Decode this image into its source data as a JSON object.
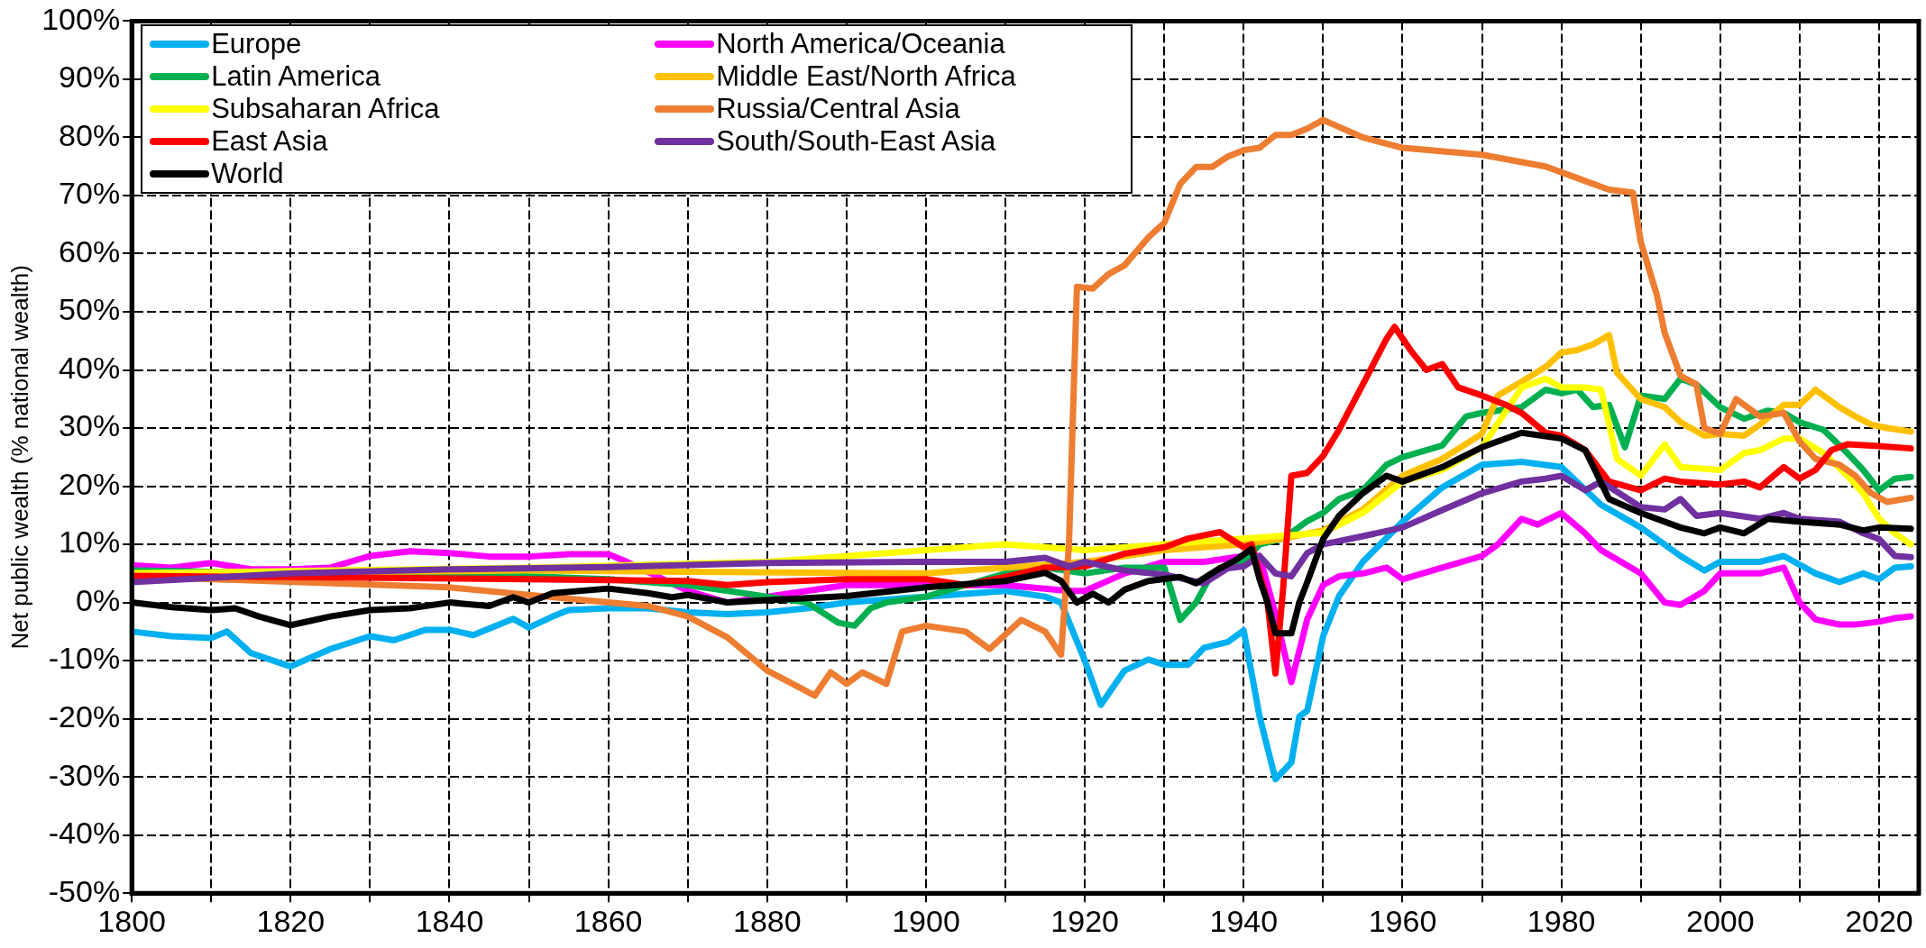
{
  "chart_data": {
    "type": "line",
    "ylabel": "Net public wealth (% national wealth)",
    "xlim": [
      1800,
      2025
    ],
    "ylim": [
      -50,
      100
    ],
    "xticks": [
      1800,
      {
        "value": 1810,
        "label": null
      },
      1820,
      {
        "value": 1830,
        "label": null
      },
      1840,
      {
        "value": 1850,
        "label": null
      },
      1860,
      {
        "value": 1870,
        "label": null
      },
      1880,
      {
        "value": 1890,
        "label": null
      },
      1900,
      {
        "value": 1910,
        "label": null
      },
      1920,
      {
        "value": 1930,
        "label": null
      },
      1940,
      {
        "value": 1950,
        "label": null
      },
      1960,
      {
        "value": 1970,
        "label": null
      },
      1980,
      {
        "value": 1990,
        "label": null
      },
      2000,
      {
        "value": 2010,
        "label": null
      },
      2020
    ],
    "yticks": [
      {
        "value": -50,
        "label": "-50%"
      },
      {
        "value": -40,
        "label": "-40%"
      },
      {
        "value": -30,
        "label": "-30%"
      },
      {
        "value": -20,
        "label": "-20%"
      },
      {
        "value": -10,
        "label": "-10%"
      },
      {
        "value": 0,
        "label": "0%"
      },
      {
        "value": 10,
        "label": "10%"
      },
      {
        "value": 20,
        "label": "20%"
      },
      {
        "value": 30,
        "label": "30%"
      },
      {
        "value": 40,
        "label": "40%"
      },
      {
        "value": 50,
        "label": "50%"
      },
      {
        "value": 60,
        "label": "60%"
      },
      {
        "value": 70,
        "label": "70%"
      },
      {
        "value": 80,
        "label": "80%"
      },
      {
        "value": 90,
        "label": "90%"
      },
      {
        "value": 100,
        "label": "100%"
      }
    ],
    "grid": true,
    "legend": "top left",
    "marker": "none",
    "line_style": "solid",
    "series": [
      {
        "name": "Europe",
        "color": "#00b0f0",
        "x": [
          1800,
          1805,
          1810,
          1812,
          1815,
          1820,
          1825,
          1830,
          1833,
          1837,
          1840,
          1843,
          1848,
          1850,
          1853,
          1855,
          1860,
          1865,
          1870,
          1875,
          1880,
          1885,
          1890,
          1900,
          1910,
          1915,
          1917,
          1920,
          1922,
          1925,
          1928,
          1930,
          1933,
          1935,
          1938,
          1940,
          1942,
          1944,
          1946,
          1947,
          1948,
          1950,
          1952,
          1955,
          1960,
          1965,
          1970,
          1975,
          1980,
          1985,
          1990,
          1995,
          1998,
          2000,
          2005,
          2008,
          2012,
          2015,
          2018,
          2020,
          2022,
          2024
        ],
        "values": [
          -5,
          -5.8,
          -6.1,
          -5,
          -8.7,
          -11,
          -8,
          -5.8,
          -6.5,
          -4.7,
          -4.7,
          -5.6,
          -2.8,
          -4.3,
          -2.4,
          -1.3,
          -1,
          -1,
          -1.7,
          -2,
          -1.7,
          -1,
          0,
          1,
          2,
          1,
          0,
          -10,
          -17.6,
          -11.7,
          -9.8,
          -10.7,
          -10.7,
          -7.8,
          -6.8,
          -4.8,
          -19.6,
          -30.4,
          -27.5,
          -19.6,
          -18.6,
          -5.8,
          1.1,
          7,
          13.9,
          19.8,
          23.7,
          24.2,
          23.3,
          16.8,
          12.9,
          8,
          5.5,
          7,
          7,
          8,
          5,
          3.5,
          5,
          4,
          6,
          6.2
        ]
      },
      {
        "name": "North America/Oceania",
        "color": "#ff00ff",
        "x": [
          1800,
          1805,
          1810,
          1815,
          1820,
          1825,
          1830,
          1835,
          1840,
          1845,
          1850,
          1855,
          1860,
          1862,
          1870,
          1875,
          1880,
          1885,
          1890,
          1900,
          1910,
          1918,
          1920,
          1925,
          1930,
          1935,
          1940,
          1942,
          1944,
          1946,
          1948,
          1950,
          1952,
          1955,
          1958,
          1960,
          1965,
          1970,
          1972,
          1975,
          1977,
          1980,
          1983,
          1985,
          1990,
          1993,
          1995,
          1998,
          2000,
          2005,
          2008,
          2010,
          2012,
          2015,
          2017,
          2020,
          2022,
          2024
        ],
        "values": [
          6.4,
          6,
          6.8,
          5.7,
          5.7,
          6,
          8,
          8.8,
          8.5,
          7.9,
          7.9,
          8.3,
          8.3,
          7.2,
          2,
          0,
          1,
          2,
          3,
          3,
          3,
          2,
          2,
          5,
          7,
          7,
          8,
          8,
          -2,
          -13.7,
          -2.9,
          3,
          4.5,
          5,
          6,
          4,
          6,
          8,
          10,
          14.4,
          13.4,
          15.4,
          11.9,
          9,
          5,
          0,
          -0.4,
          2,
          5,
          5,
          6,
          0,
          -2.9,
          -3.8,
          -3.8,
          -3.3,
          -2.7,
          -2.4
        ]
      },
      {
        "name": "Latin America",
        "color": "#00b050",
        "x": [
          1800,
          1820,
          1840,
          1860,
          1870,
          1880,
          1885,
          1889,
          1891,
          1893,
          1895,
          1900,
          1905,
          1910,
          1915,
          1920,
          1925,
          1930,
          1932,
          1934,
          1936,
          1940,
          1942,
          1945,
          1948,
          1950,
          1952,
          1955,
          1958,
          1960,
          1965,
          1968,
          1970,
          1975,
          1978,
          1980,
          1982,
          1984,
          1986,
          1988,
          1990,
          1993,
          1995,
          1997,
          2000,
          2003,
          2006,
          2008,
          2010,
          2013,
          2016,
          2018,
          2020,
          2022,
          2024
        ],
        "values": [
          5.5,
          5,
          5,
          4,
          3,
          1,
          0,
          -3.5,
          -4,
          -1,
          0,
          1,
          3,
          5,
          6,
          5,
          6,
          6,
          -3,
          0,
          5,
          7,
          10,
          11,
          14,
          15.4,
          17.8,
          19.3,
          23.7,
          25,
          27,
          32,
          32.6,
          33.6,
          36.6,
          36,
          36.6,
          33.6,
          34,
          26.7,
          35.6,
          35,
          38.5,
          37.5,
          33.6,
          31.6,
          33,
          32.6,
          31,
          29.7,
          25.7,
          22.8,
          19.3,
          21.3,
          21.6
        ]
      },
      {
        "name": "Middle East/North Africa",
        "color": "#ffc000",
        "x": [
          1800,
          1850,
          1900,
          1920,
          1930,
          1940,
          1945,
          1950,
          1955,
          1960,
          1965,
          1970,
          1972,
          1975,
          1978,
          1980,
          1982,
          1984,
          1986,
          1987,
          1990,
          1993,
          1995,
          1998,
          2000,
          2003,
          2005,
          2008,
          2010,
          2012,
          2015,
          2017,
          2019,
          2021,
          2024
        ],
        "values": [
          5,
          5.5,
          5,
          7,
          9,
          10,
          11,
          12.4,
          16,
          21.8,
          24.7,
          29,
          35.6,
          38,
          40.5,
          43,
          43.4,
          44.4,
          46,
          39.5,
          35,
          33.6,
          31,
          28.7,
          29,
          28.7,
          30.6,
          34,
          34,
          36.6,
          33.6,
          32,
          30.6,
          30,
          29.4
        ]
      },
      {
        "name": "Subsaharan Africa",
        "color": "#ffff00",
        "x": [
          1800,
          1850,
          1880,
          1900,
          1910,
          1920,
          1930,
          1940,
          1945,
          1950,
          1955,
          1960,
          1965,
          1970,
          1975,
          1978,
          1980,
          1983,
          1985,
          1987,
          1990,
          1993,
          1995,
          2000,
          2003,
          2005,
          2008,
          2010,
          2013,
          2016,
          2018,
          2020,
          2022,
          2024
        ],
        "values": [
          5,
          6,
          7,
          9,
          10,
          9,
          10,
          11,
          11.5,
          12,
          15.4,
          20.8,
          22.8,
          26.7,
          37,
          38.5,
          37,
          37,
          36.6,
          24.7,
          21.8,
          27.2,
          23.3,
          22.8,
          25.7,
          26.2,
          28.2,
          28.2,
          25.7,
          21.8,
          18.8,
          14.4,
          11.9,
          10
        ]
      },
      {
        "name": "Russia/Central Asia",
        "color": "#ed7d31",
        "x": [
          1800,
          1840,
          1860,
          1865,
          1870,
          1875,
          1880,
          1886,
          1888,
          1890,
          1892,
          1895,
          1897,
          1900,
          1905,
          1908,
          1912,
          1915,
          1917,
          1918,
          1919,
          1921,
          1923,
          1925,
          1928,
          1930,
          1932,
          1934,
          1936,
          1938,
          1940,
          1942,
          1944,
          1946,
          1948,
          1950,
          1955,
          1960,
          1970,
          1978,
          1982,
          1986,
          1989,
          1990,
          1992,
          1993,
          1995,
          1997,
          1998,
          2000,
          2002,
          2005,
          2008,
          2010,
          2012,
          2015,
          2017,
          2019,
          2021,
          2024
        ],
        "values": [
          4.5,
          2.6,
          0,
          -0.6,
          -2.4,
          -6,
          -11.7,
          -16,
          -12,
          -14,
          -12,
          -14,
          -5,
          -4,
          -5,
          -8,
          -3,
          -5,
          -9,
          10,
          54.3,
          54,
          56.5,
          58,
          62.8,
          65.3,
          72,
          74.9,
          74.9,
          76.7,
          77.8,
          78.2,
          80.4,
          80.4,
          81.5,
          83,
          80,
          78.2,
          77,
          75,
          73,
          71,
          70.5,
          62,
          53,
          46.4,
          39,
          37.5,
          30,
          29,
          35,
          32,
          32.6,
          27.7,
          24.7,
          23.7,
          21.8,
          18.8,
          17.3,
          18
        ]
      },
      {
        "name": "East Asia",
        "color": "#ff0000",
        "x": [
          1800,
          1850,
          1870,
          1875,
          1880,
          1890,
          1900,
          1905,
          1910,
          1915,
          1920,
          1925,
          1930,
          1933,
          1937,
          1940,
          1941,
          1943,
          1944,
          1945,
          1946,
          1948,
          1950,
          1952,
          1955,
          1958,
          1959,
          1961,
          1963,
          1965,
          1967,
          1970,
          1973,
          1975,
          1978,
          1980,
          1983,
          1986,
          1990,
          1993,
          1995,
          2000,
          2003,
          2005,
          2008,
          2010,
          2012,
          2014,
          2016,
          2020,
          2024
        ],
        "values": [
          4.6,
          4,
          3.7,
          3,
          3.5,
          4,
          4,
          3,
          4.4,
          6,
          6.2,
          8.4,
          9.5,
          11,
          12.1,
          9.5,
          10,
          0,
          -12.2,
          3,
          21.8,
          22.3,
          25.2,
          29.7,
          37.5,
          45.4,
          47.4,
          43.4,
          40,
          41,
          37,
          35.6,
          34,
          32.6,
          29.2,
          28.7,
          26.2,
          20.8,
          19.3,
          21.3,
          20.8,
          20.3,
          20.8,
          19.8,
          23.3,
          21.3,
          22.8,
          26.2,
          27.2,
          26.9,
          26.5
        ]
      },
      {
        "name": "South/South-East Asia",
        "color": "#7030a0",
        "x": [
          1800,
          1820,
          1840,
          1860,
          1880,
          1900,
          1910,
          1915,
          1918,
          1920,
          1925,
          1930,
          1935,
          1938,
          1940,
          1942,
          1944,
          1946,
          1948,
          1950,
          1955,
          1960,
          1965,
          1970,
          1975,
          1978,
          1980,
          1983,
          1985,
          1990,
          1993,
          1995,
          1997,
          2000,
          2005,
          2008,
          2010,
          2015,
          2018,
          2020,
          2022,
          2024
        ],
        "values": [
          3.5,
          5,
          5.7,
          6.1,
          6.8,
          7,
          7,
          7.7,
          6.2,
          7,
          5.5,
          4.8,
          3.3,
          5.9,
          6.2,
          8,
          5,
          4.5,
          8.5,
          10,
          11.4,
          12.9,
          15.9,
          18.8,
          20.8,
          21.3,
          21.8,
          19.3,
          20.8,
          16.4,
          16,
          17.8,
          14.9,
          15.4,
          14.4,
          15.4,
          14.4,
          13.9,
          11.9,
          10.9,
          8,
          7.8
        ]
      },
      {
        "name": "World",
        "color": "#000000",
        "x": [
          1800,
          1805,
          1810,
          1813,
          1816,
          1820,
          1825,
          1830,
          1835,
          1840,
          1845,
          1848,
          1850,
          1853,
          1860,
          1865,
          1868,
          1870,
          1875,
          1880,
          1890,
          1900,
          1910,
          1915,
          1917,
          1919,
          1921,
          1923,
          1925,
          1928,
          1932,
          1934,
          1937,
          1939,
          1941,
          1942,
          1943,
          1944,
          1946,
          1947,
          1948,
          1950,
          1952,
          1955,
          1958,
          1960,
          1965,
          1970,
          1975,
          1980,
          1983,
          1986,
          1990,
          1995,
          1998,
          2000,
          2003,
          2006,
          2010,
          2015,
          2018,
          2020,
          2024
        ],
        "values": [
          0,
          -0.8,
          -1.3,
          -1,
          -2.4,
          -3.9,
          -2.4,
          -1.3,
          -1,
          0,
          -0.6,
          0.9,
          0,
          1.6,
          2.4,
          1.6,
          0.9,
          1.3,
          0,
          0.4,
          1.1,
          2.6,
          3.7,
          5.1,
          3.7,
          0,
          1.5,
          0,
          2.2,
          3.7,
          4.4,
          3.3,
          5.9,
          7.3,
          9.2,
          4,
          0,
          -5.3,
          -5.3,
          0,
          3.5,
          10.9,
          14.9,
          18.8,
          21.8,
          20.8,
          23.3,
          26.7,
          29.2,
          28.2,
          26.2,
          17.8,
          15.4,
          12.9,
          11.9,
          12.9,
          11.9,
          14.4,
          13.9,
          13.4,
          12.4,
          12.9,
          12.7
        ]
      }
    ]
  }
}
